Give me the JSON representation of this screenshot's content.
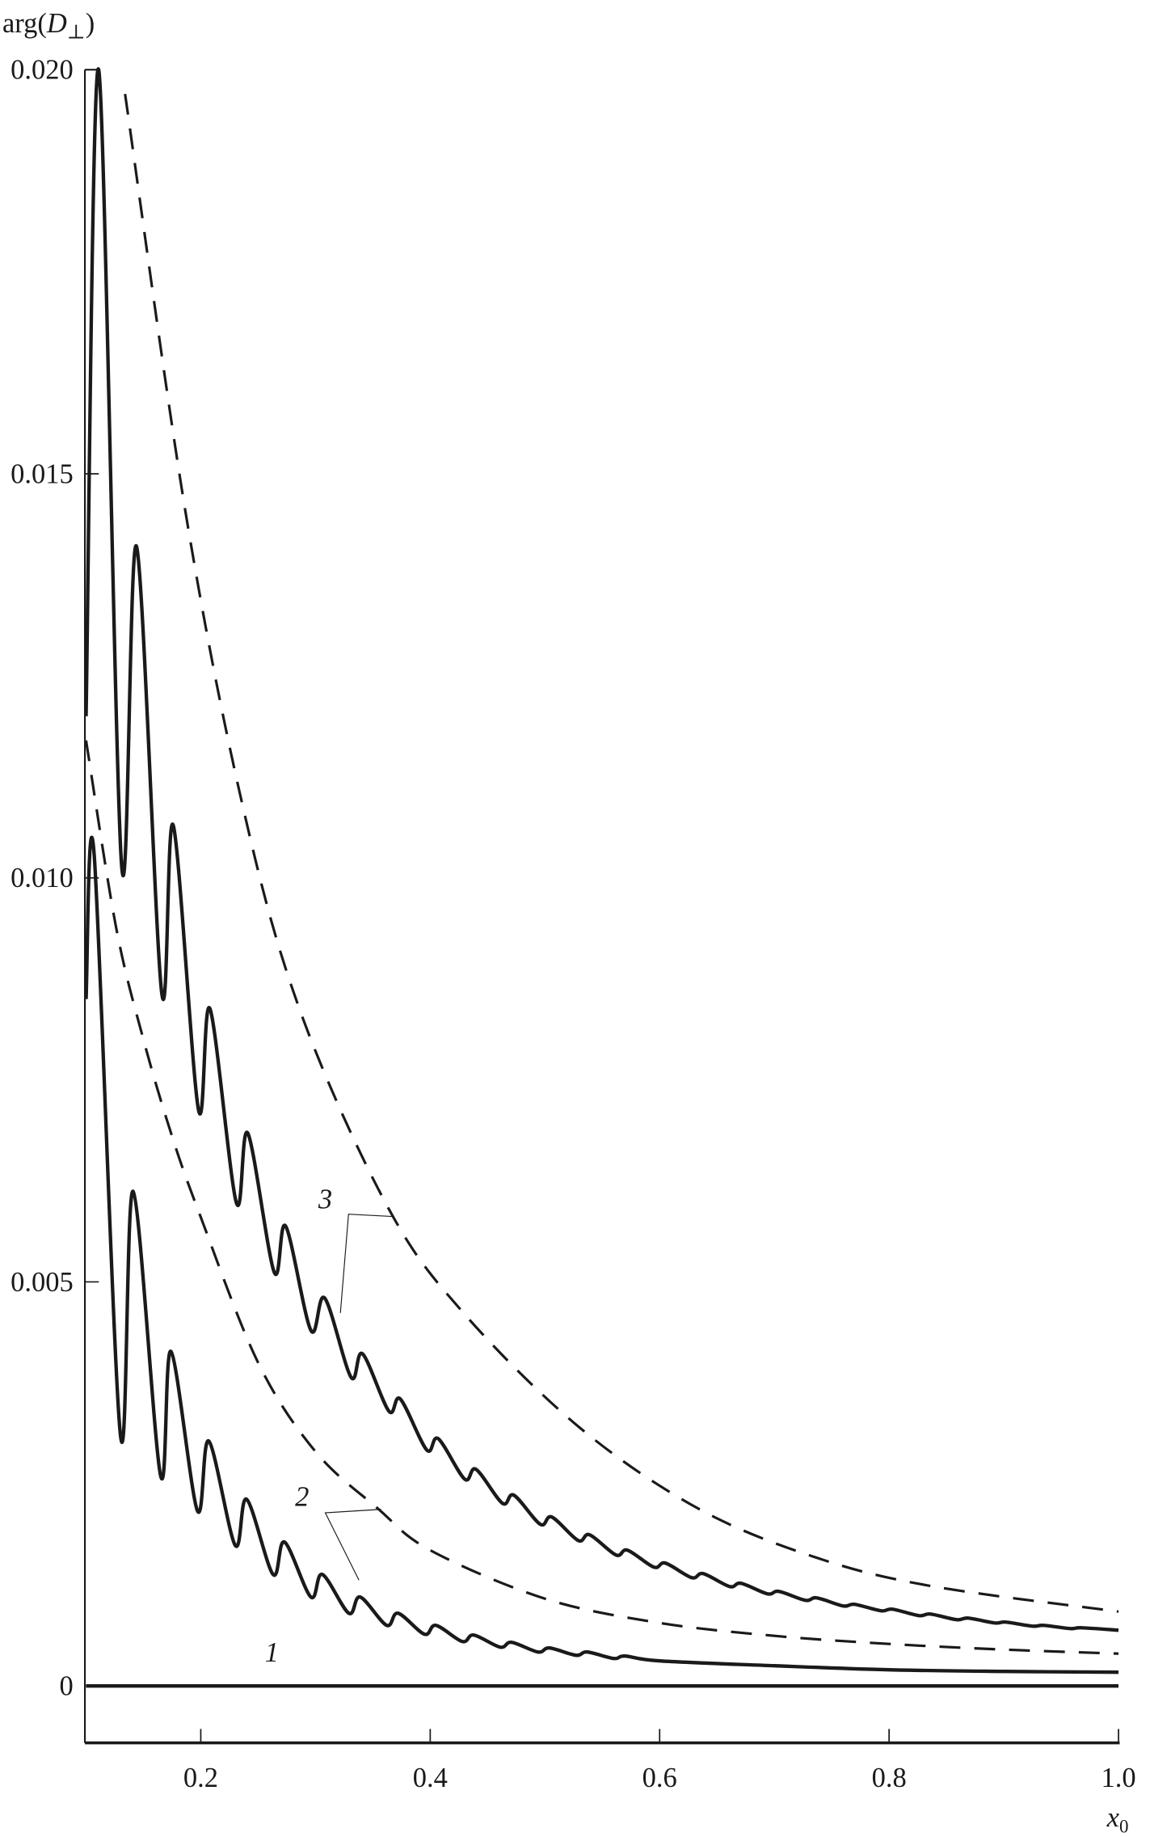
{
  "chart_data": {
    "type": "line",
    "ylabel_prefix": "arg(",
    "ylabel_var": "D",
    "ylabel_sub": "⊥",
    "ylabel_suffix": ")",
    "xlabel_var": "x",
    "xlabel_sub": "0",
    "xlim": [
      0.1,
      1.0
    ],
    "ylim": [
      0,
      0.02
    ],
    "xticks": [
      0.2,
      0.4,
      0.6,
      0.8,
      1.0
    ],
    "xtick_labels": [
      "0.2",
      "0.4",
      "0.6",
      "0.8",
      "1.0"
    ],
    "yticks": [
      0,
      0.005,
      0.01,
      0.015,
      0.02
    ],
    "ytick_labels": [
      "0",
      "0.005",
      "0.010",
      "0.015",
      "0.020"
    ],
    "grid": false,
    "color": "#1a1a1a",
    "curve_labels": [
      "1",
      "2",
      "3"
    ],
    "series": [
      {
        "label": "1",
        "style": "solid",
        "points": [
          [
            0.1,
            0
          ],
          [
            1.0,
            0
          ]
        ]
      },
      {
        "label": "2",
        "style": "solid",
        "points": [
          [
            0.1,
            0.0085
          ],
          [
            0.107,
            0.0103
          ],
          [
            0.13,
            0.0031
          ],
          [
            0.141,
            0.00612
          ],
          [
            0.165,
            0.0026
          ],
          [
            0.174,
            0.00414
          ],
          [
            0.197,
            0.00217
          ],
          [
            0.207,
            0.00303
          ],
          [
            0.23,
            0.00174
          ],
          [
            0.24,
            0.00231
          ],
          [
            0.263,
            0.00138
          ],
          [
            0.273,
            0.00178
          ],
          [
            0.296,
            0.0011
          ],
          [
            0.306,
            0.00138
          ],
          [
            0.329,
            0.0009
          ],
          [
            0.339,
            0.0011
          ],
          [
            0.362,
            0.00075
          ],
          [
            0.372,
            0.0009
          ],
          [
            0.395,
            0.00064
          ],
          [
            0.405,
            0.00075
          ],
          [
            0.428,
            0.00055
          ],
          [
            0.438,
            0.00063
          ],
          [
            0.461,
            0.00048
          ],
          [
            0.471,
            0.00054
          ],
          [
            0.494,
            0.00042
          ],
          [
            0.504,
            0.00047
          ],
          [
            0.527,
            0.00038
          ],
          [
            0.537,
            0.00042
          ],
          [
            0.56,
            0.00034
          ],
          [
            0.57,
            0.00037
          ],
          [
            0.6,
            0.00031
          ],
          [
            0.7,
            0.00025
          ],
          [
            0.8,
            0.0002
          ],
          [
            0.9,
            0.00018
          ],
          [
            1.0,
            0.00017
          ]
        ]
      },
      {
        "label": "2",
        "style": "dashed",
        "points": [
          [
            0.1,
            0.0117
          ],
          [
            0.126,
            0.0094
          ],
          [
            0.15,
            0.008
          ],
          [
            0.175,
            0.0068
          ],
          [
            0.2,
            0.0058
          ],
          [
            0.25,
            0.004
          ],
          [
            0.3,
            0.0029
          ],
          [
            0.354,
            0.0022
          ],
          [
            0.4,
            0.00168
          ],
          [
            0.5,
            0.00108
          ],
          [
            0.6,
            0.00078
          ],
          [
            0.7,
            0.00062
          ],
          [
            0.8,
            0.00052
          ],
          [
            0.9,
            0.00045
          ],
          [
            1.0,
            0.0004
          ]
        ]
      },
      {
        "label": "3",
        "style": "solid",
        "points": [
          [
            0.1,
            0.012
          ],
          [
            0.111,
            0.02
          ],
          [
            0.131,
            0.01015
          ],
          [
            0.144,
            0.0141
          ],
          [
            0.166,
            0.00857
          ],
          [
            0.176,
            0.01065
          ],
          [
            0.198,
            0.00713
          ],
          [
            0.208,
            0.00838
          ],
          [
            0.231,
            0.00598
          ],
          [
            0.241,
            0.00684
          ],
          [
            0.264,
            0.00512
          ],
          [
            0.274,
            0.00569
          ],
          [
            0.296,
            0.0044
          ],
          [
            0.308,
            0.0048
          ],
          [
            0.331,
            0.00382
          ],
          [
            0.341,
            0.00411
          ],
          [
            0.364,
            0.0034
          ],
          [
            0.374,
            0.00355
          ],
          [
            0.397,
            0.00292
          ],
          [
            0.407,
            0.00306
          ],
          [
            0.43,
            0.00256
          ],
          [
            0.44,
            0.00268
          ],
          [
            0.463,
            0.00226
          ],
          [
            0.473,
            0.00236
          ],
          [
            0.496,
            0.002
          ],
          [
            0.506,
            0.00209
          ],
          [
            0.529,
            0.0018
          ],
          [
            0.539,
            0.00187
          ],
          [
            0.562,
            0.00162
          ],
          [
            0.572,
            0.00168
          ],
          [
            0.595,
            0.00147
          ],
          [
            0.605,
            0.00152
          ],
          [
            0.628,
            0.00134
          ],
          [
            0.638,
            0.00139
          ],
          [
            0.661,
            0.00123
          ],
          [
            0.671,
            0.00127
          ],
          [
            0.694,
            0.00114
          ],
          [
            0.704,
            0.00117
          ],
          [
            0.727,
            0.00106
          ],
          [
            0.737,
            0.00109
          ],
          [
            0.76,
            0.00099
          ],
          [
            0.77,
            0.00101
          ],
          [
            0.793,
            0.00093
          ],
          [
            0.803,
            0.00095
          ],
          [
            0.826,
            0.00087
          ],
          [
            0.836,
            0.00089
          ],
          [
            0.859,
            0.00082
          ],
          [
            0.869,
            0.00084
          ],
          [
            0.892,
            0.00078
          ],
          [
            0.902,
            0.00079
          ],
          [
            0.925,
            0.00074
          ],
          [
            0.935,
            0.00075
          ],
          [
            0.958,
            0.00071
          ],
          [
            0.968,
            0.00072
          ],
          [
            1.0,
            0.00069
          ]
        ]
      },
      {
        "label": "3",
        "style": "dashed",
        "points": [
          [
            0.134,
            0.0197
          ],
          [
            0.187,
            0.0145
          ],
          [
            0.238,
            0.0108
          ],
          [
            0.288,
            0.0083
          ],
          [
            0.364,
            0.0059
          ],
          [
            0.43,
            0.0046
          ],
          [
            0.53,
            0.0032
          ],
          [
            0.633,
            0.0022
          ],
          [
            0.734,
            0.0016
          ],
          [
            0.835,
            0.00124
          ],
          [
            1.0,
            0.00092
          ]
        ]
      }
    ]
  }
}
